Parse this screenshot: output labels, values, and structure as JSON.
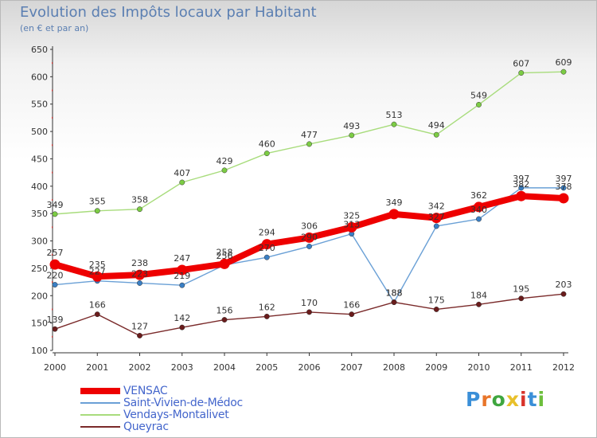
{
  "title": "Evolution des Impôts locaux par Habitant",
  "subtitle": "(en € et par an)",
  "brand": {
    "text": "Proxiti",
    "colors": [
      "#3a8fd8",
      "#e8752a",
      "#3fa63f",
      "#e8c02a",
      "#d8322a",
      "#3a8fd8",
      "#6cbf3c"
    ]
  },
  "chart_data": {
    "type": "line",
    "title": "Evolution des Impôts locaux par Habitant",
    "subtitle": "(en € et par an)",
    "x": [
      "2000",
      "2001",
      "2002",
      "2003",
      "2004",
      "2005",
      "2006",
      "2007",
      "2008",
      "2009",
      "2010",
      "2011",
      "2012"
    ],
    "ylim": [
      100,
      650
    ],
    "yticks": [
      100,
      150,
      200,
      250,
      300,
      350,
      400,
      450,
      500,
      550,
      600,
      650
    ],
    "grid": false,
    "legend": "bottom-left",
    "series": [
      {
        "name": "VENSAC",
        "color": "#ee0000",
        "values": [
          257,
          235,
          238,
          247,
          258,
          294,
          306,
          325,
          349,
          342,
          362,
          382,
          378
        ]
      },
      {
        "name": "Saint-Vivien-de-Médoc",
        "color": "#6aa0d6",
        "values": [
          220,
          227,
          223,
          219,
          256,
          270,
          290,
          313,
          188,
          327,
          340,
          397,
          397
        ]
      },
      {
        "name": "Vendays-Montalivet",
        "color": "#a8dc7c",
        "values": [
          349,
          355,
          358,
          407,
          429,
          460,
          477,
          493,
          513,
          494,
          549,
          607,
          609
        ]
      },
      {
        "name": "Queyrac",
        "color": "#7a2a2a",
        "values": [
          139,
          166,
          127,
          142,
          156,
          162,
          170,
          166,
          188,
          175,
          184,
          195,
          203
        ]
      }
    ]
  }
}
